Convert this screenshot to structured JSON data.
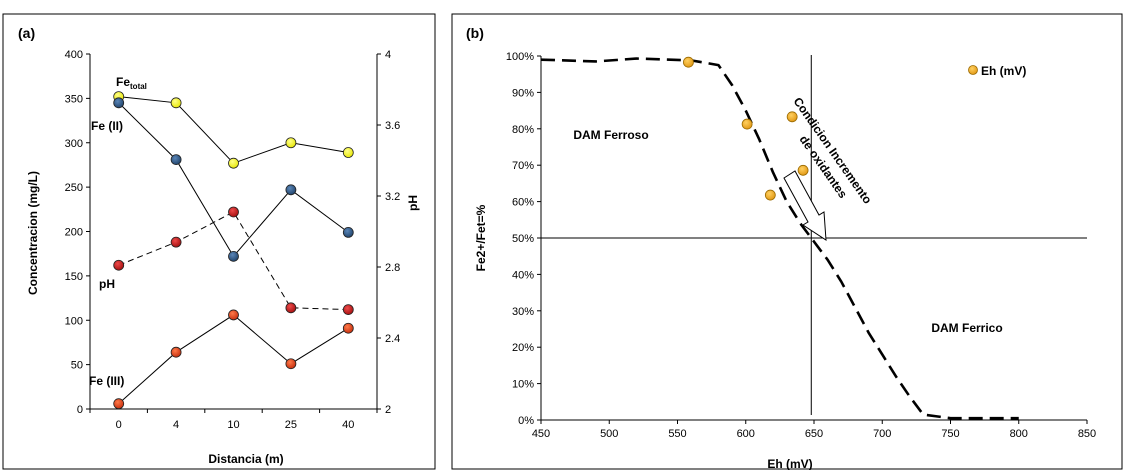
{
  "chart_data": [
    {
      "panel": "(a)",
      "type": "line",
      "categories": [
        "0",
        "4",
        "10",
        "25",
        "40"
      ],
      "xlabel": "Distancia (m)",
      "ylabel": "Concentracion (mg/L)",
      "y2label": "pH",
      "ylim": [
        0,
        400
      ],
      "yticks": [
        "0",
        "50",
        "100",
        "150",
        "200",
        "250",
        "300",
        "350",
        "400"
      ],
      "y2lim": [
        2,
        4
      ],
      "y2ticks": [
        "2",
        "2.4",
        "2.8",
        "3.2",
        "3.6",
        "4"
      ],
      "grid": false,
      "series": [
        {
          "name": "Fe",
          "name_sub": "total",
          "axis": "left",
          "values": [
            352,
            345,
            277,
            300,
            289
          ],
          "color": "#ffff33",
          "dashed": false
        },
        {
          "name": "Fe (II)",
          "axis": "left",
          "values": [
            345,
            281,
            172,
            247,
            199
          ],
          "color": "#2e5a8a",
          "dashed": false
        },
        {
          "name": "Fe (III)",
          "axis": "left",
          "values": [
            6,
            64,
            106,
            51,
            91
          ],
          "color": "#e8401c",
          "dashed": false
        },
        {
          "name": "pH",
          "axis": "right",
          "values": [
            2.81,
            2.94,
            3.11,
            2.57,
            2.56
          ],
          "color": "#cc1a1a",
          "dashed": true
        }
      ]
    },
    {
      "panel": "(b)",
      "type": "scatter",
      "xlabel": "Eh (mV)",
      "ylabel": "Fe2+/Fet=%",
      "xlim": [
        450,
        850
      ],
      "xticks": [
        "450",
        "500",
        "550",
        "600",
        "650",
        "700",
        "750",
        "800",
        "850"
      ],
      "ylim": [
        0,
        100
      ],
      "yticks": [
        "0%",
        "10%",
        "20%",
        "30%",
        "40%",
        "50%",
        "60%",
        "70%",
        "80%",
        "90%",
        "100%"
      ],
      "grid": false,
      "legend": {
        "label": "Eh (mV)",
        "position": "top-right"
      },
      "points": {
        "x": [
          558,
          601,
          618,
          634,
          642
        ],
        "y": [
          98.3,
          81.3,
          61.8,
          83.3,
          68.6
        ],
        "color": "#f5b021"
      },
      "boundary_curve": {
        "x": [
          450,
          490,
          520,
          560,
          580,
          590,
          600,
          610,
          620,
          630,
          640,
          650,
          660,
          670,
          680,
          690,
          700,
          710,
          720,
          730,
          740,
          750,
          770,
          800
        ],
        "y": [
          99,
          98.5,
          99.3,
          98.8,
          97.5,
          92,
          85,
          77,
          68,
          60,
          54,
          49,
          44,
          38,
          31,
          24,
          18,
          12,
          6.5,
          1.5,
          1,
          0.5,
          0.5,
          0.5
        ]
      },
      "reference_lines": {
        "x": 648,
        "y": 50
      },
      "annotations": {
        "ferroso": "DAM Ferroso",
        "ferrico": "DAM Ferrico",
        "condition_line1": "Condicion Incremento",
        "condition_line2": "de oxidantes"
      }
    }
  ]
}
